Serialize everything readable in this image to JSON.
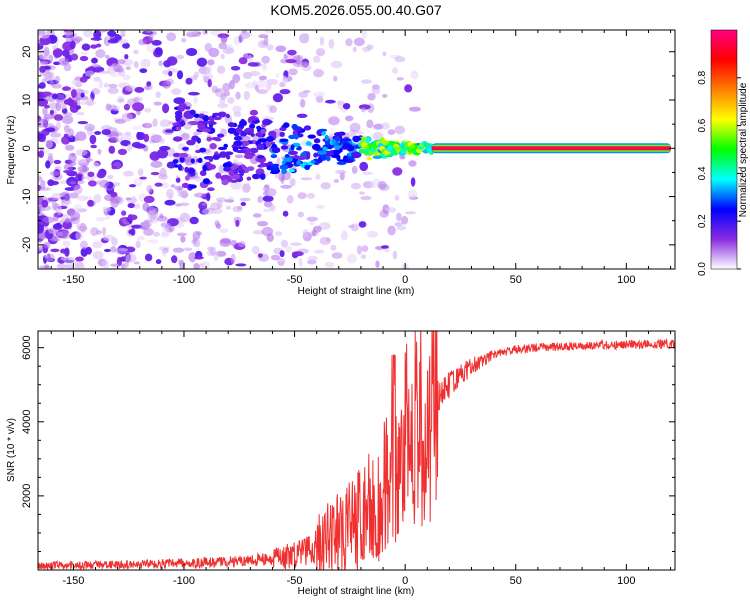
{
  "title": "KOM5.2026.055.00.40.G07",
  "colors": {
    "snr_line": "#f03030",
    "axis": "#000000",
    "spectrum_base": "#8a2be2"
  },
  "chart_data": [
    {
      "type": "heatmap",
      "name": "spectrogram",
      "xlabel": "Height of straight line (km)",
      "ylabel": "Frequency (Hz)",
      "xlim": [
        -166,
        122
      ],
      "ylim": [
        -25,
        24.5
      ],
      "xticks": [
        -150,
        -100,
        -50,
        0,
        50,
        100
      ],
      "yticks": [
        -20,
        -10,
        0,
        10,
        20
      ],
      "colorbar": {
        "label": "Normalized spectral amplitude",
        "range": [
          0,
          1
        ],
        "ticks": [
          0.0,
          0.2,
          0.4,
          0.6,
          0.8
        ],
        "tick_labels": [
          "0.0",
          "0.2",
          "0.4",
          "0.6",
          "0.8"
        ],
        "colormap": [
          "#ffffff",
          "#8a2be2",
          "#0000ff",
          "#00ffff",
          "#00ff00",
          "#ffff00",
          "#ff7f00",
          "#ff0000",
          "#ff0080"
        ]
      },
      "description_points": {
        "noise_region_x": [
          -166,
          -20
        ],
        "signal_start_x": -25,
        "strong_line_start_x": 12,
        "line_frequency_hz": 0,
        "line_amplitude": 0.95
      }
    },
    {
      "type": "line",
      "name": "snr",
      "xlabel": "Height of straight line (km)",
      "ylabel": "SNR (10 * v/v)",
      "xlim": [
        -166,
        122
      ],
      "ylim": [
        0,
        6450
      ],
      "xticks": [
        -150,
        -100,
        -50,
        0,
        50,
        100
      ],
      "yticks": [
        2000,
        4000,
        6000
      ],
      "trend": {
        "x": [
          -166,
          -150,
          -120,
          -100,
          -80,
          -60,
          -50,
          -40,
          -30,
          -20,
          -15,
          -10,
          -5,
          0,
          5,
          10,
          15,
          20,
          30,
          40,
          50,
          60,
          80,
          100,
          122
        ],
        "y": [
          120,
          130,
          150,
          180,
          220,
          300,
          420,
          650,
          1000,
          1400,
          1700,
          2100,
          2800,
          3500,
          3900,
          4200,
          4600,
          5000,
          5500,
          5800,
          5950,
          6000,
          6050,
          6080,
          6100
        ]
      }
    }
  ]
}
